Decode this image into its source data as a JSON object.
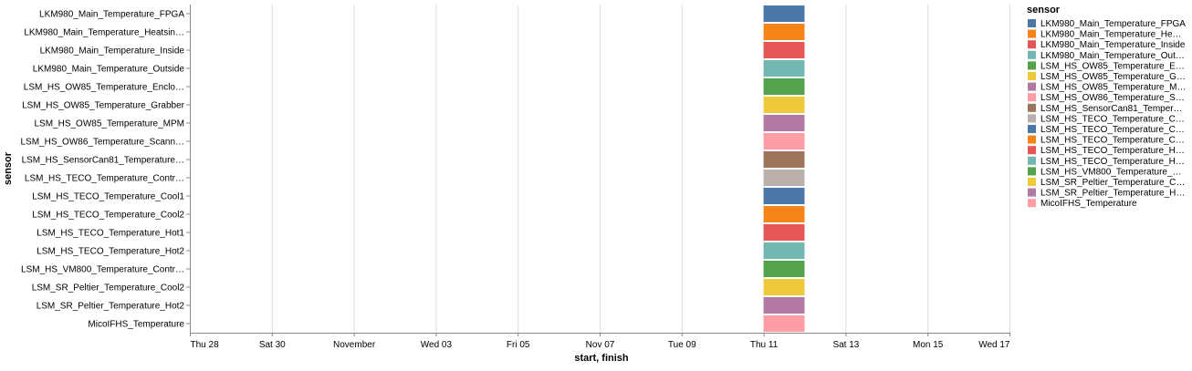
{
  "chart_data": {
    "type": "bar",
    "orientation": "horizontal-gantt",
    "xlabel": "start, finish",
    "ylabel": "sensor",
    "x_ticks": [
      "Thu 28",
      "Sat 30",
      "November",
      "Wed 03",
      "Fri 05",
      "Nov 07",
      "Tue 09",
      "Thu 11",
      "Sat 13",
      "Mon 15",
      "Wed 17"
    ],
    "x_range_days": [
      0,
      20
    ],
    "legend": {
      "title": "sensor",
      "position": "right"
    },
    "grid": true,
    "palette": [
      "#4c78a8",
      "#f58518",
      "#e45756",
      "#72b7b2",
      "#54a24b",
      "#eeca3b",
      "#b279a2",
      "#ff9da6",
      "#9d755d",
      "#bab0ac"
    ],
    "categories": [
      "LKM980_Main_Temperature_FPGA",
      "LKM980_Main_Temperature_Heatsin…",
      "LKM980_Main_Temperature_Inside",
      "LKM980_Main_Temperature_Outside",
      "LSM_HS_OW85_Temperature_Enclo…",
      "LSM_HS_OW85_Temperature_Grabber",
      "LSM_HS_OW85_Temperature_MPM",
      "LSM_HS_OW86_Temperature_Scann…",
      "LSM_HS_SensorCan81_Temperature…",
      "LSM_HS_TECO_Temperature_Contr…",
      "LSM_HS_TECO_Temperature_Cool1",
      "LSM_HS_TECO_Temperature_Cool2",
      "LSM_HS_TECO_Temperature_Hot1",
      "LSM_HS_TECO_Temperature_Hot2",
      "LSM_HS_VM800_Temperature_Contr…",
      "LSM_SR_Peltier_Temperature_Cool2",
      "LSM_SR_Peltier_Temperature_Hot2",
      "MicoIFHS_Temperature"
    ],
    "legend_labels": [
      "LKM980_Main_Temperature_FPGA",
      "LKM980_Main_Temperature_He…",
      "LKM980_Main_Temperature_Inside",
      "LKM980_Main_Temperature_Out…",
      "LSM_HS_OW85_Temperature_E…",
      "LSM_HS_OW85_Temperature_G…",
      "LSM_HS_OW85_Temperature_M…",
      "LSM_HS_OW86_Temperature_S…",
      "LSM_HS_SensorCan81_Temper…",
      "LSM_HS_TECO_Temperature_C…",
      "LSM_HS_TECO_Temperature_C…",
      "LSM_HS_TECO_Temperature_C…",
      "LSM_HS_TECO_Temperature_H…",
      "LSM_HS_TECO_Temperature_H…",
      "LSM_HS_VM800_Temperature_…",
      "LSM_SR_Peltier_Temperature_C…",
      "LSM_SR_Peltier_Temperature_H…",
      "MicoIFHS_Temperature"
    ],
    "start_day": 14.0,
    "finish_day": 15.0
  }
}
